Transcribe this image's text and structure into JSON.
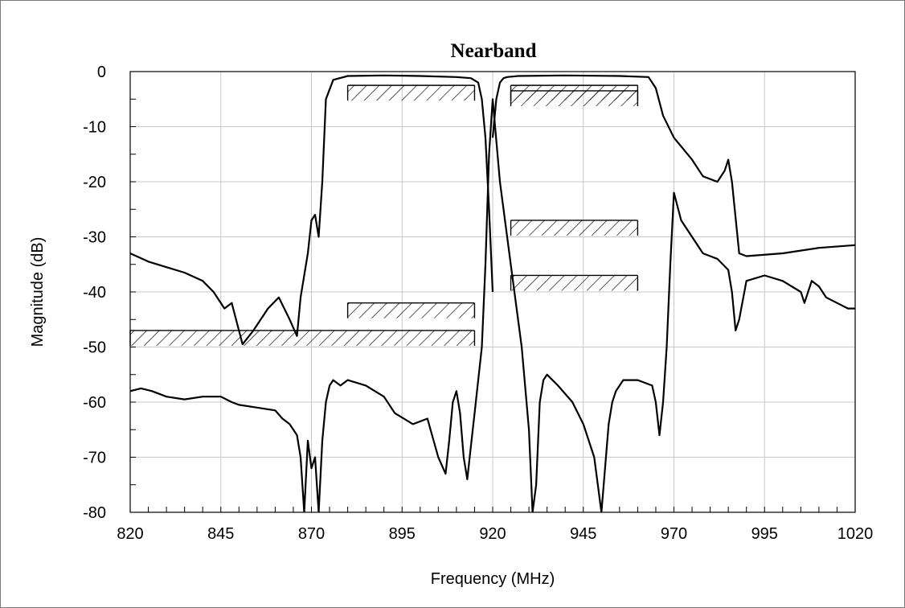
{
  "chart_data": {
    "type": "line",
    "title": "Nearband",
    "xlabel": "Frequency (MHz)",
    "ylabel": "Magnitude (dB)",
    "xlim": [
      820,
      1020
    ],
    "ylim": [
      -80,
      0
    ],
    "x_ticks": [
      "820",
      "845",
      "870",
      "895",
      "920",
      "945",
      "970",
      "995",
      "1020"
    ],
    "y_ticks": [
      "0",
      "-10",
      "-20",
      "-30",
      "-40",
      "-50",
      "-60",
      "-70",
      "-80"
    ],
    "grid": true,
    "series": [
      {
        "x": [
          820,
          825,
          830,
          835,
          840,
          843,
          846,
          848,
          851,
          854,
          858,
          861,
          864,
          866,
          867,
          869,
          870,
          871,
          872,
          873,
          874,
          876,
          880,
          890,
          900,
          910,
          914,
          916,
          917,
          918,
          919,
          920
        ],
        "y": [
          -33,
          -34.5,
          -35.5,
          -36.5,
          -38,
          -40,
          -43,
          -42,
          -49.5,
          -47,
          -43,
          -41,
          -45,
          -48,
          -41,
          -33,
          -27,
          -26,
          -30,
          -20,
          -5,
          -1.5,
          -0.8,
          -0.7,
          -0.8,
          -1,
          -1.2,
          -2,
          -5,
          -12,
          -25,
          -40
        ]
      },
      {
        "x": [
          920,
          921,
          922,
          923,
          924,
          927,
          940,
          955,
          963,
          965,
          967,
          970,
          975,
          978,
          982,
          984,
          985,
          986,
          988,
          990,
          1000,
          1010,
          1020
        ],
        "y": [
          -12,
          -5,
          -2,
          -1.2,
          -1,
          -0.8,
          -0.7,
          -0.8,
          -1,
          -3,
          -8,
          -12,
          -16,
          -19,
          -20,
          -18,
          -16,
          -20,
          -33,
          -33.5,
          -33,
          -32,
          -31.5
        ]
      },
      {
        "x": [
          820,
          823,
          826,
          830,
          835,
          840,
          845,
          848,
          850,
          855,
          860,
          862,
          864,
          866,
          867,
          868,
          869,
          870,
          871,
          872,
          873,
          874,
          875,
          876,
          878,
          880,
          885,
          890,
          893,
          898,
          902,
          905,
          907,
          908,
          909,
          910,
          911,
          912,
          913,
          914,
          915,
          916,
          917,
          918,
          919,
          920,
          922,
          925,
          928,
          930,
          931,
          932,
          933,
          934,
          935,
          938,
          942,
          945,
          948,
          950,
          951,
          952,
          953,
          954,
          956,
          960,
          964,
          965,
          966,
          967,
          968,
          969,
          970,
          972,
          974,
          976,
          978,
          982,
          985,
          986,
          987,
          988,
          990,
          995,
          1000,
          1005,
          1006,
          1008,
          1010,
          1012,
          1015,
          1018,
          1020
        ],
        "y": [
          -58,
          -57.5,
          -58,
          -59,
          -59.5,
          -59,
          -59,
          -60,
          -60.5,
          -61,
          -61.5,
          -63,
          -64,
          -66,
          -70,
          -80,
          -67,
          -72,
          -70,
          -80,
          -67,
          -60,
          -57,
          -56,
          -57,
          -56,
          -57,
          -59,
          -62,
          -64,
          -63,
          -70,
          -73,
          -67,
          -60,
          -58,
          -62,
          -70,
          -74,
          -68,
          -62,
          -56,
          -50,
          -35,
          -15,
          -5,
          -20,
          -35,
          -50,
          -65,
          -80,
          -75,
          -60,
          -56,
          -55,
          -57,
          -60,
          -64,
          -70,
          -80,
          -72,
          -64,
          -60,
          -58,
          -56,
          -56,
          -57,
          -60,
          -66,
          -60,
          -50,
          -35,
          -22,
          -27,
          -29,
          -31,
          -33,
          -34,
          -36,
          -40,
          -47,
          -45,
          -38,
          -37,
          -38,
          -40,
          -42,
          -38,
          -39,
          -41,
          -42,
          -43,
          -43
        ]
      }
    ],
    "masks": [
      {
        "x": [
          880,
          915
        ],
        "y": -2.5
      },
      {
        "x": [
          925,
          960
        ],
        "y": -2.5
      },
      {
        "x": [
          925,
          960
        ],
        "y": -3.5
      },
      {
        "x": [
          925,
          960
        ],
        "y": -27
      },
      {
        "x": [
          925,
          960
        ],
        "y": -37
      },
      {
        "x": [
          880,
          915
        ],
        "y": -42
      },
      {
        "x": [
          820,
          915
        ],
        "y": -47
      }
    ]
  }
}
